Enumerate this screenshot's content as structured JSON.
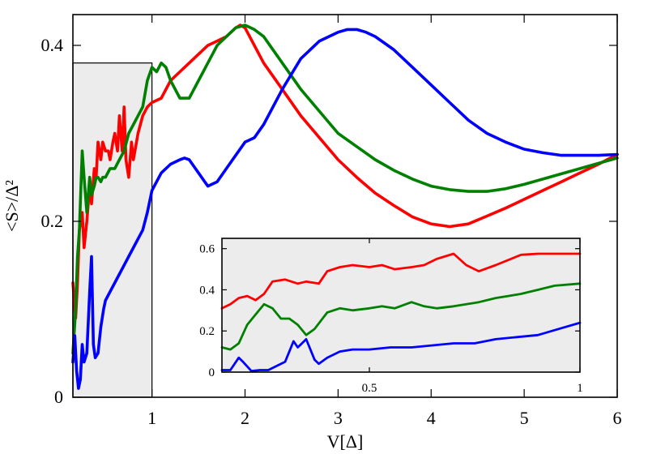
{
  "chart_data": [
    {
      "type": "line",
      "xlabel": "V[Δ]",
      "ylabel": "<S>/Δ²",
      "xlim": [
        0.15,
        6.0
      ],
      "ylim": [
        0.0,
        0.435
      ],
      "xticks": [
        1,
        2,
        3,
        4,
        5,
        6
      ],
      "xtick_labels": [
        "1",
        "2",
        "3",
        "4",
        "5",
        "6"
      ],
      "yticks": [
        0,
        0.2,
        0.4
      ],
      "ytick_labels": [
        "0",
        "0.2",
        "0.4"
      ],
      "highlight_region": {
        "x": [
          0.15,
          1.0
        ],
        "y": [
          0.0,
          0.38
        ],
        "color": "#ececec"
      },
      "series": [
        {
          "color": "#ff0000",
          "x": [
            0.15,
            0.18,
            0.2,
            0.22,
            0.25,
            0.27,
            0.3,
            0.33,
            0.35,
            0.38,
            0.4,
            0.42,
            0.45,
            0.47,
            0.5,
            0.53,
            0.55,
            0.58,
            0.6,
            0.63,
            0.65,
            0.68,
            0.7,
            0.72,
            0.75,
            0.78,
            0.8,
            0.85,
            0.9,
            0.95,
            1.0,
            1.1,
            1.2,
            1.3,
            1.4,
            1.5,
            1.6,
            1.7,
            1.8,
            1.9,
            1.95,
            2.0,
            2.1,
            2.2,
            2.4,
            2.6,
            2.8,
            3.0,
            3.2,
            3.4,
            3.6,
            3.8,
            4.0,
            4.2,
            4.4,
            4.6,
            4.8,
            5.0,
            5.2,
            5.4,
            5.6,
            5.8,
            6.0
          ],
          "y": [
            0.13,
            0.09,
            0.13,
            0.19,
            0.21,
            0.17,
            0.2,
            0.24,
            0.22,
            0.26,
            0.25,
            0.29,
            0.27,
            0.29,
            0.28,
            0.28,
            0.27,
            0.29,
            0.3,
            0.28,
            0.32,
            0.28,
            0.33,
            0.27,
            0.25,
            0.29,
            0.27,
            0.3,
            0.32,
            0.33,
            0.335,
            0.34,
            0.36,
            0.37,
            0.38,
            0.39,
            0.4,
            0.405,
            0.41,
            0.42,
            0.423,
            0.42,
            0.4,
            0.38,
            0.35,
            0.32,
            0.295,
            0.27,
            0.25,
            0.232,
            0.218,
            0.205,
            0.197,
            0.194,
            0.197,
            0.206,
            0.215,
            0.225,
            0.235,
            0.245,
            0.255,
            0.265,
            0.276
          ]
        },
        {
          "color": "#008000",
          "x": [
            0.15,
            0.18,
            0.2,
            0.22,
            0.25,
            0.27,
            0.3,
            0.33,
            0.35,
            0.38,
            0.4,
            0.42,
            0.45,
            0.47,
            0.5,
            0.55,
            0.6,
            0.65,
            0.7,
            0.75,
            0.8,
            0.85,
            0.9,
            0.95,
            1.0,
            1.05,
            1.1,
            1.15,
            1.2,
            1.3,
            1.4,
            1.5,
            1.6,
            1.7,
            1.8,
            1.9,
            2.0,
            2.1,
            2.2,
            2.4,
            2.6,
            2.8,
            3.0,
            3.2,
            3.4,
            3.6,
            3.8,
            4.0,
            4.2,
            4.4,
            4.6,
            4.8,
            5.0,
            5.2,
            5.4,
            5.6,
            5.8,
            6.0
          ],
          "y": [
            0.05,
            0.1,
            0.16,
            0.19,
            0.28,
            0.25,
            0.21,
            0.25,
            0.23,
            0.24,
            0.25,
            0.25,
            0.245,
            0.25,
            0.25,
            0.26,
            0.26,
            0.27,
            0.28,
            0.3,
            0.31,
            0.32,
            0.33,
            0.36,
            0.375,
            0.37,
            0.38,
            0.375,
            0.36,
            0.34,
            0.34,
            0.36,
            0.38,
            0.4,
            0.41,
            0.42,
            0.423,
            0.418,
            0.41,
            0.38,
            0.35,
            0.325,
            0.3,
            0.285,
            0.27,
            0.258,
            0.248,
            0.24,
            0.236,
            0.234,
            0.234,
            0.237,
            0.242,
            0.248,
            0.254,
            0.26,
            0.266,
            0.272
          ]
        },
        {
          "color": "#0000ff",
          "x": [
            0.15,
            0.17,
            0.19,
            0.21,
            0.23,
            0.25,
            0.27,
            0.3,
            0.33,
            0.35,
            0.37,
            0.39,
            0.42,
            0.45,
            0.48,
            0.5,
            0.55,
            0.6,
            0.65,
            0.7,
            0.75,
            0.8,
            0.85,
            0.9,
            0.95,
            1.0,
            1.1,
            1.2,
            1.3,
            1.35,
            1.4,
            1.5,
            1.6,
            1.7,
            1.8,
            1.9,
            2.0,
            2.1,
            2.2,
            2.4,
            2.6,
            2.8,
            3.0,
            3.1,
            3.2,
            3.3,
            3.4,
            3.6,
            3.8,
            4.0,
            4.2,
            4.4,
            4.6,
            4.8,
            5.0,
            5.2,
            5.4,
            5.6,
            5.8,
            6.0
          ],
          "y": [
            0.04,
            0.07,
            0.03,
            0.01,
            0.02,
            0.06,
            0.04,
            0.05,
            0.12,
            0.16,
            0.06,
            0.045,
            0.05,
            0.08,
            0.1,
            0.11,
            0.12,
            0.13,
            0.14,
            0.15,
            0.16,
            0.17,
            0.18,
            0.19,
            0.21,
            0.235,
            0.255,
            0.265,
            0.27,
            0.272,
            0.27,
            0.255,
            0.24,
            0.245,
            0.26,
            0.275,
            0.29,
            0.295,
            0.31,
            0.35,
            0.385,
            0.405,
            0.415,
            0.418,
            0.418,
            0.415,
            0.41,
            0.395,
            0.375,
            0.355,
            0.335,
            0.315,
            0.3,
            0.29,
            0.282,
            0.278,
            0.275,
            0.275,
            0.275,
            0.276
          ]
        }
      ]
    },
    {
      "type": "line",
      "role": "inset",
      "xlabel": "",
      "ylabel": "",
      "xlim": [
        0.15,
        1.0
      ],
      "ylim": [
        0.0,
        0.65
      ],
      "xticks": [
        0.5,
        1
      ],
      "xtick_labels": [
        "0.5",
        "1"
      ],
      "yticks": [
        0,
        0.2,
        0.4,
        0.6
      ],
      "ytick_labels": [
        "0",
        "0.2",
        "0.4",
        "0.6"
      ],
      "background": "#ececec",
      "series": [
        {
          "color": "#ff0000",
          "x": [
            0.15,
            0.17,
            0.19,
            0.21,
            0.23,
            0.25,
            0.27,
            0.3,
            0.33,
            0.35,
            0.38,
            0.4,
            0.43,
            0.46,
            0.5,
            0.53,
            0.56,
            0.6,
            0.63,
            0.66,
            0.7,
            0.73,
            0.76,
            0.8,
            0.83,
            0.86,
            0.9,
            0.94,
            1.0
          ],
          "y": [
            0.31,
            0.33,
            0.36,
            0.37,
            0.35,
            0.38,
            0.44,
            0.45,
            0.43,
            0.44,
            0.43,
            0.49,
            0.51,
            0.52,
            0.51,
            0.52,
            0.5,
            0.51,
            0.52,
            0.55,
            0.575,
            0.52,
            0.49,
            0.52,
            0.545,
            0.57,
            0.575,
            0.575,
            0.575
          ]
        },
        {
          "color": "#008000",
          "x": [
            0.15,
            0.17,
            0.19,
            0.21,
            0.23,
            0.25,
            0.27,
            0.29,
            0.31,
            0.33,
            0.35,
            0.37,
            0.4,
            0.43,
            0.46,
            0.5,
            0.53,
            0.56,
            0.6,
            0.63,
            0.66,
            0.7,
            0.73,
            0.76,
            0.8,
            0.83,
            0.86,
            0.9,
            0.94,
            1.0
          ],
          "y": [
            0.12,
            0.11,
            0.14,
            0.23,
            0.28,
            0.33,
            0.31,
            0.26,
            0.26,
            0.23,
            0.18,
            0.21,
            0.29,
            0.31,
            0.3,
            0.31,
            0.32,
            0.31,
            0.34,
            0.32,
            0.31,
            0.32,
            0.33,
            0.34,
            0.36,
            0.37,
            0.38,
            0.4,
            0.42,
            0.43
          ]
        },
        {
          "color": "#0000ff",
          "x": [
            0.15,
            0.17,
            0.19,
            0.2,
            0.22,
            0.24,
            0.26,
            0.28,
            0.3,
            0.32,
            0.33,
            0.34,
            0.35,
            0.37,
            0.38,
            0.4,
            0.43,
            0.46,
            0.5,
            0.55,
            0.6,
            0.65,
            0.7,
            0.75,
            0.8,
            0.85,
            0.9,
            0.95,
            1.0
          ],
          "y": [
            0.01,
            0.01,
            0.07,
            0.05,
            0.005,
            0.01,
            0.01,
            0.03,
            0.05,
            0.15,
            0.12,
            0.14,
            0.16,
            0.06,
            0.04,
            0.07,
            0.1,
            0.11,
            0.11,
            0.12,
            0.12,
            0.13,
            0.14,
            0.14,
            0.16,
            0.17,
            0.18,
            0.21,
            0.24
          ]
        }
      ]
    }
  ]
}
